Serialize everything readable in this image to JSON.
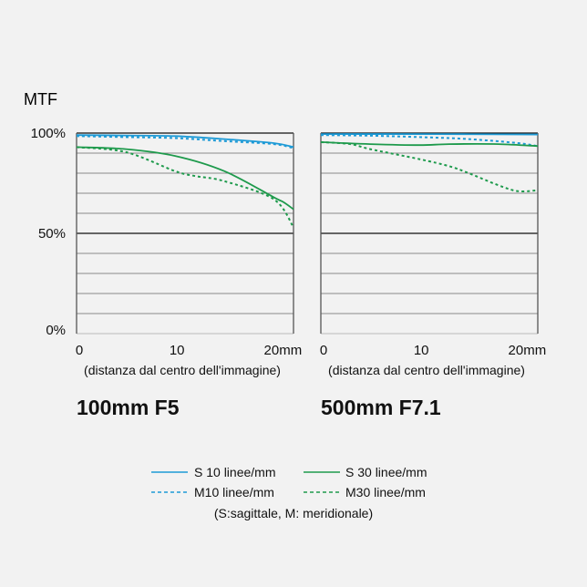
{
  "chart_data": [
    {
      "type": "line",
      "title": "100mm F5",
      "ylabel": "MTF",
      "xlabel": "(distanza dal centro dell'immagine)",
      "xlim": [
        0,
        22
      ],
      "ylim": [
        0,
        100
      ],
      "x_ticks": [
        "0",
        "10",
        "20mm"
      ],
      "y_ticks": [
        "100%",
        "50%",
        "0%"
      ],
      "grid": true,
      "series": [
        {
          "name": "S 10 linee/mm",
          "color": "#1d9ad6",
          "dash": false,
          "x": [
            0,
            5,
            10,
            15,
            20,
            22
          ],
          "y": [
            99,
            98.8,
            98.5,
            97,
            95,
            93
          ]
        },
        {
          "name": "M10 linee/mm",
          "color": "#1d9ad6",
          "dash": true,
          "x": [
            0,
            5,
            10,
            15,
            20,
            22
          ],
          "y": [
            98.5,
            98,
            97.5,
            96,
            94.5,
            92.5
          ]
        },
        {
          "name": "S 30 linee/mm",
          "color": "#1e9a4c",
          "dash": false,
          "x": [
            0,
            5,
            10,
            15,
            20,
            21,
            22
          ],
          "y": [
            93,
            92,
            88.6,
            81,
            68,
            65.5,
            62
          ]
        },
        {
          "name": "M30 linee/mm",
          "color": "#1e9a4c",
          "dash": true,
          "x": [
            0,
            5,
            10,
            12,
            15,
            20,
            22
          ],
          "y": [
            93,
            90.5,
            81,
            78.6,
            76,
            67,
            53
          ]
        }
      ]
    },
    {
      "type": "line",
      "title": "500mm F7.1",
      "xlabel": "(distanza dal centro dell'immagine)",
      "xlim": [
        0,
        22
      ],
      "ylim": [
        0,
        100
      ],
      "x_ticks": [
        "0",
        "10",
        "20mm"
      ],
      "grid": true,
      "series": [
        {
          "name": "S 10 linee/mm",
          "color": "#1d9ad6",
          "dash": false,
          "x": [
            0,
            11,
            22
          ],
          "y": [
            99.5,
            99.5,
            99.3
          ]
        },
        {
          "name": "M10 linee/mm",
          "color": "#1d9ad6",
          "dash": true,
          "x": [
            0,
            5,
            10,
            15,
            20,
            22
          ],
          "y": [
            99,
            98.7,
            98,
            97,
            95,
            93.5
          ]
        },
        {
          "name": "S 30 linee/mm",
          "color": "#1e9a4c",
          "dash": false,
          "x": [
            0,
            5,
            10,
            13,
            18,
            22
          ],
          "y": [
            95.5,
            94.5,
            94,
            94.5,
            94.5,
            93.5
          ]
        },
        {
          "name": "M30 linee/mm",
          "color": "#1e9a4c",
          "dash": true,
          "x": [
            0,
            3,
            5,
            10,
            13,
            15,
            18,
            20,
            22
          ],
          "y": [
            95.5,
            94.5,
            92,
            87,
            83.5,
            80,
            74,
            71,
            71.5
          ]
        }
      ]
    }
  ],
  "legend": {
    "items": [
      "S 10 linee/mm",
      "S 30 linee/mm",
      "M10 linee/mm",
      "M30 linee/mm"
    ],
    "note": "(S:sagittale, M: meridionale)"
  }
}
